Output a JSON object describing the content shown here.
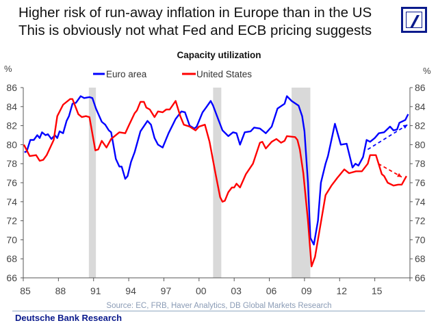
{
  "header": {
    "line1": "Higher risk of run-away inflation in Europe than in the US",
    "line2": "This is obviously not what Fed and ECB pricing suggests",
    "logo": "deutsche-bank-logo"
  },
  "footer": {
    "text": "Deutsche Bank Research"
  },
  "chart_data": {
    "type": "line",
    "title": "Capacity utilization",
    "ylabel_left": "%",
    "ylabel_right": "%",
    "source": "Source: EC, FRB, Haver Analytics, DB Global Markets Research",
    "xlim": [
      1985,
      2018
    ],
    "ylim": [
      66,
      86
    ],
    "x_ticks": [
      1985,
      1988,
      1991,
      1994,
      1997,
      2000,
      2003,
      2006,
      2009,
      2012,
      2015,
      2018
    ],
    "x_tick_labels": [
      "85",
      "88",
      "91",
      "94",
      "97",
      "00",
      "03",
      "06",
      "09",
      "12",
      "15",
      ""
    ],
    "y_ticks": [
      66,
      68,
      70,
      72,
      74,
      76,
      78,
      80,
      82,
      84,
      86
    ],
    "legend_position": "top-center",
    "grid": false,
    "recessions": [
      [
        1990.6,
        1991.2
      ],
      [
        2001.2,
        2001.9
      ],
      [
        2007.9,
        2009.5
      ]
    ],
    "series": [
      {
        "name": "Euro area",
        "color": "#0000ff",
        "points": [
          [
            1985.1,
            79.2
          ],
          [
            1985.3,
            79.3
          ],
          [
            1985.6,
            80.5
          ],
          [
            1985.9,
            80.5
          ],
          [
            1986.2,
            81.0
          ],
          [
            1986.4,
            80.7
          ],
          [
            1986.6,
            81.3
          ],
          [
            1986.9,
            81.0
          ],
          [
            1987.1,
            81.1
          ],
          [
            1987.4,
            80.6
          ],
          [
            1987.7,
            81.0
          ],
          [
            1987.9,
            80.7
          ],
          [
            1988.1,
            81.4
          ],
          [
            1988.4,
            81.2
          ],
          [
            1988.7,
            82.5
          ],
          [
            1988.9,
            83.0
          ],
          [
            1989.2,
            84.3
          ],
          [
            1989.5,
            84.4
          ],
          [
            1989.9,
            85.1
          ],
          [
            1990.2,
            84.9
          ],
          [
            1990.65,
            85.0
          ],
          [
            1990.9,
            84.9
          ],
          [
            1991.2,
            83.8
          ],
          [
            1991.7,
            82.4
          ],
          [
            1992.0,
            82.1
          ],
          [
            1992.3,
            81.5
          ],
          [
            1992.5,
            81.3
          ],
          [
            1992.9,
            78.5
          ],
          [
            1993.2,
            77.7
          ],
          [
            1993.4,
            77.7
          ],
          [
            1993.7,
            76.4
          ],
          [
            1993.9,
            76.7
          ],
          [
            1994.2,
            78.2
          ],
          [
            1994.5,
            79.2
          ],
          [
            1995.0,
            81.4
          ],
          [
            1995.6,
            82.5
          ],
          [
            1995.9,
            82.1
          ],
          [
            1996.2,
            80.7
          ],
          [
            1996.5,
            80.0
          ],
          [
            1996.9,
            79.7
          ],
          [
            1997.4,
            81.2
          ],
          [
            1997.8,
            82.2
          ],
          [
            1998.0,
            82.7
          ],
          [
            1998.5,
            83.5
          ],
          [
            1998.8,
            83.4
          ],
          [
            1999.2,
            82.0
          ],
          [
            1999.6,
            81.7
          ],
          [
            1999.8,
            81.9
          ],
          [
            2000.3,
            83.4
          ],
          [
            2000.6,
            83.9
          ],
          [
            2001.0,
            84.6
          ],
          [
            2001.2,
            84.1
          ],
          [
            2001.6,
            82.8
          ],
          [
            2002.0,
            81.5
          ],
          [
            2002.5,
            80.9
          ],
          [
            2002.9,
            81.3
          ],
          [
            2003.2,
            81.2
          ],
          [
            2003.5,
            80.0
          ],
          [
            2003.9,
            81.3
          ],
          [
            2004.4,
            81.4
          ],
          [
            2004.7,
            81.8
          ],
          [
            2005.2,
            81.7
          ],
          [
            2005.7,
            81.2
          ],
          [
            2006.2,
            81.9
          ],
          [
            2006.7,
            83.8
          ],
          [
            2007.3,
            84.3
          ],
          [
            2007.5,
            85.1
          ],
          [
            2007.9,
            84.6
          ],
          [
            2008.5,
            84.1
          ],
          [
            2008.8,
            83.0
          ],
          [
            2009.0,
            81.4
          ],
          [
            2009.3,
            76.0
          ],
          [
            2009.5,
            70.2
          ],
          [
            2009.8,
            69.5
          ],
          [
            2010.15,
            72.0
          ],
          [
            2010.4,
            76.0
          ],
          [
            2010.8,
            78.0
          ],
          [
            2011.0,
            78.8
          ],
          [
            2011.6,
            82.2
          ],
          [
            2012.1,
            80.0
          ],
          [
            2012.6,
            80.1
          ],
          [
            2013.1,
            77.6
          ],
          [
            2013.35,
            78.0
          ],
          [
            2013.6,
            77.8
          ],
          [
            2014.0,
            78.7
          ],
          [
            2014.3,
            80.5
          ],
          [
            2014.6,
            80.3
          ],
          [
            2015.0,
            80.7
          ],
          [
            2015.35,
            81.2
          ],
          [
            2015.8,
            81.3
          ],
          [
            2016.3,
            81.9
          ],
          [
            2016.6,
            81.5
          ],
          [
            2016.9,
            81.6
          ],
          [
            2017.1,
            82.3
          ],
          [
            2017.6,
            82.6
          ],
          [
            2017.85,
            83.2
          ]
        ]
      },
      {
        "name": "United States",
        "color": "#ff0000",
        "points": [
          [
            1985.05,
            80.0
          ],
          [
            1985.55,
            78.8
          ],
          [
            1986.1,
            78.9
          ],
          [
            1986.4,
            78.3
          ],
          [
            1986.7,
            78.4
          ],
          [
            1987.0,
            78.9
          ],
          [
            1987.6,
            80.5
          ],
          [
            1987.9,
            83.0
          ],
          [
            1988.4,
            84.2
          ],
          [
            1989.0,
            84.8
          ],
          [
            1989.2,
            84.8
          ],
          [
            1989.7,
            83.2
          ],
          [
            1990.0,
            82.9
          ],
          [
            1990.35,
            83.0
          ],
          [
            1990.65,
            82.9
          ],
          [
            1991.15,
            79.4
          ],
          [
            1991.4,
            79.5
          ],
          [
            1991.7,
            80.4
          ],
          [
            1992.1,
            79.7
          ],
          [
            1992.5,
            80.6
          ],
          [
            1993.2,
            81.3
          ],
          [
            1993.7,
            81.2
          ],
          [
            1994.0,
            82.0
          ],
          [
            1994.5,
            83.3
          ],
          [
            1994.7,
            83.6
          ],
          [
            1995.0,
            84.5
          ],
          [
            1995.3,
            84.5
          ],
          [
            1995.5,
            83.9
          ],
          [
            1995.8,
            83.7
          ],
          [
            1996.2,
            82.9
          ],
          [
            1996.5,
            83.5
          ],
          [
            1996.9,
            83.4
          ],
          [
            1997.2,
            83.7
          ],
          [
            1997.5,
            83.7
          ],
          [
            1998.0,
            84.6
          ],
          [
            1998.4,
            83.0
          ],
          [
            1998.7,
            82.1
          ],
          [
            1999.2,
            81.9
          ],
          [
            1999.7,
            81.5
          ],
          [
            2000.0,
            81.9
          ],
          [
            2000.5,
            82.1
          ],
          [
            2000.9,
            80.3
          ],
          [
            2001.4,
            77.0
          ],
          [
            2001.8,
            74.5
          ],
          [
            2002.0,
            74.0
          ],
          [
            2002.2,
            74.1
          ],
          [
            2002.5,
            75.0
          ],
          [
            2002.8,
            75.5
          ],
          [
            2003.0,
            75.5
          ],
          [
            2003.2,
            75.9
          ],
          [
            2003.5,
            75.5
          ],
          [
            2004.0,
            76.9
          ],
          [
            2004.6,
            78.0
          ],
          [
            2005.2,
            80.2
          ],
          [
            2005.4,
            80.3
          ],
          [
            2005.7,
            79.6
          ],
          [
            2006.2,
            80.3
          ],
          [
            2006.6,
            80.6
          ],
          [
            2007.0,
            80.2
          ],
          [
            2007.3,
            80.4
          ],
          [
            2007.5,
            80.9
          ],
          [
            2008.2,
            80.8
          ],
          [
            2008.4,
            80.5
          ],
          [
            2008.6,
            79.5
          ],
          [
            2008.9,
            77.0
          ],
          [
            2009.3,
            72.0
          ],
          [
            2009.6,
            67.2
          ],
          [
            2009.9,
            68.2
          ],
          [
            2010.8,
            74.7
          ],
          [
            2011.3,
            75.7
          ],
          [
            2011.8,
            76.5
          ],
          [
            2012.4,
            77.4
          ],
          [
            2012.8,
            77.0
          ],
          [
            2013.4,
            77.2
          ],
          [
            2013.9,
            77.2
          ],
          [
            2014.4,
            78.0
          ],
          [
            2014.6,
            78.9
          ],
          [
            2015.1,
            78.9
          ],
          [
            2015.6,
            76.9
          ],
          [
            2015.8,
            76.7
          ],
          [
            2016.1,
            76.0
          ],
          [
            2016.6,
            75.7
          ],
          [
            2017.0,
            75.8
          ],
          [
            2017.3,
            75.8
          ],
          [
            2017.7,
            76.7
          ]
        ]
      }
    ],
    "annotations": [
      {
        "type": "dashed-arrow",
        "color": "#0000ff",
        "from": [
          2014.4,
          79.5
        ],
        "to": [
          2017.8,
          82.1
        ]
      },
      {
        "type": "dashed-arrow",
        "color": "#ff0000",
        "from": [
          2015.3,
          78.0
        ],
        "to": [
          2017.3,
          76.6
        ]
      }
    ]
  }
}
